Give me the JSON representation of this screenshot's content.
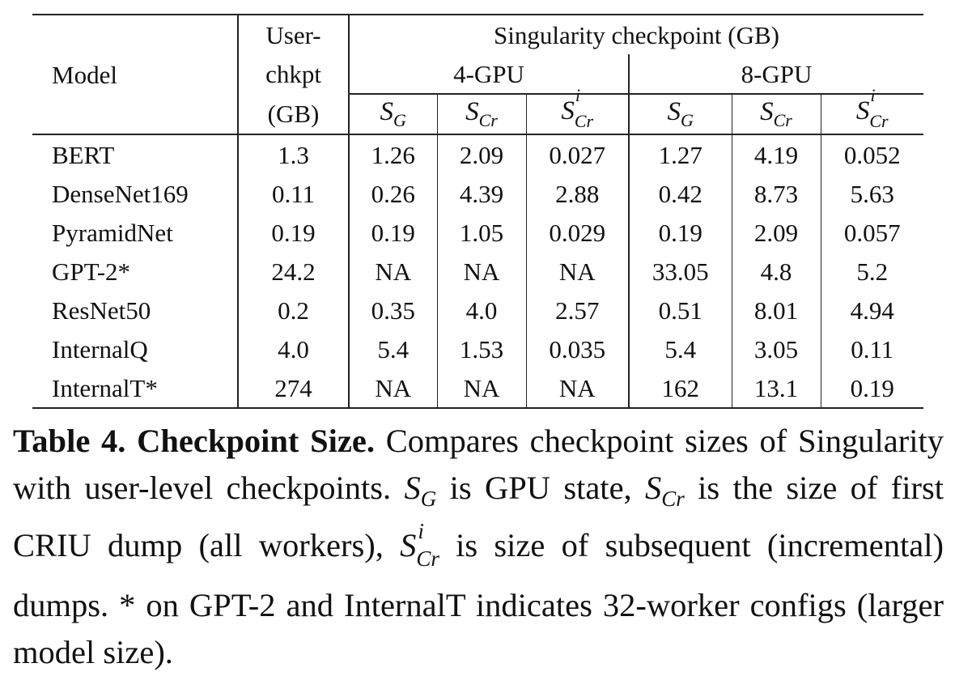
{
  "table": {
    "header": {
      "model": "Model",
      "user_chkpt": [
        "User-",
        "chkpt",
        "(GB)"
      ],
      "singularity": "Singularity checkpoint (GB)",
      "groups": [
        "4-GPU",
        "8-GPU"
      ],
      "sym_S": "S",
      "sub_G": "G",
      "sub_Cr": "Cr",
      "sup_i": "i"
    },
    "rows": [
      {
        "model": "BERT",
        "user": "1.3",
        "g4_sg": "1.26",
        "g4_scr": "2.09",
        "g4_scri": "0.027",
        "g8_sg": "1.27",
        "g8_scr": "4.19",
        "g8_scri": "0.052"
      },
      {
        "model": "DenseNet169",
        "user": "0.11",
        "g4_sg": "0.26",
        "g4_scr": "4.39",
        "g4_scri": "2.88",
        "g8_sg": "0.42",
        "g8_scr": "8.73",
        "g8_scri": "5.63"
      },
      {
        "model": "PyramidNet",
        "user": "0.19",
        "g4_sg": "0.19",
        "g4_scr": "1.05",
        "g4_scri": "0.029",
        "g8_sg": "0.19",
        "g8_scr": "2.09",
        "g8_scri": "0.057"
      },
      {
        "model": "GPT-2*",
        "user": "24.2",
        "g4_sg": "NA",
        "g4_scr": "NA",
        "g4_scri": "NA",
        "g8_sg": "33.05",
        "g8_scr": "4.8",
        "g8_scri": "5.2"
      },
      {
        "model": "ResNet50",
        "user": "0.2",
        "g4_sg": "0.35",
        "g4_scr": "4.0",
        "g4_scri": "2.57",
        "g8_sg": "0.51",
        "g8_scr": "8.01",
        "g8_scri": "4.94"
      },
      {
        "model": "InternalQ",
        "user": "4.0",
        "g4_sg": "5.4",
        "g4_scr": "1.53",
        "g4_scri": "0.035",
        "g8_sg": "5.4",
        "g8_scr": "3.05",
        "g8_scri": "0.11"
      },
      {
        "model": "InternalT*",
        "user": "274",
        "g4_sg": "NA",
        "g4_scr": "NA",
        "g4_scri": "NA",
        "g8_sg": "162",
        "g8_scr": "13.1",
        "g8_scri": "0.19"
      }
    ]
  },
  "caption": {
    "label": "Table 4. Checkpoint Size.",
    "part1": " Compares checkpoint sizes of Singularity with user-level checkpoints. ",
    "part2": " is GPU state, ",
    "part3": " is the size of first CRIU dump (all workers), ",
    "part4": " is size of subsequent (incremental) dumps. * on GPT-2 and InternalT indicates 32-worker configs (larger model size)."
  }
}
